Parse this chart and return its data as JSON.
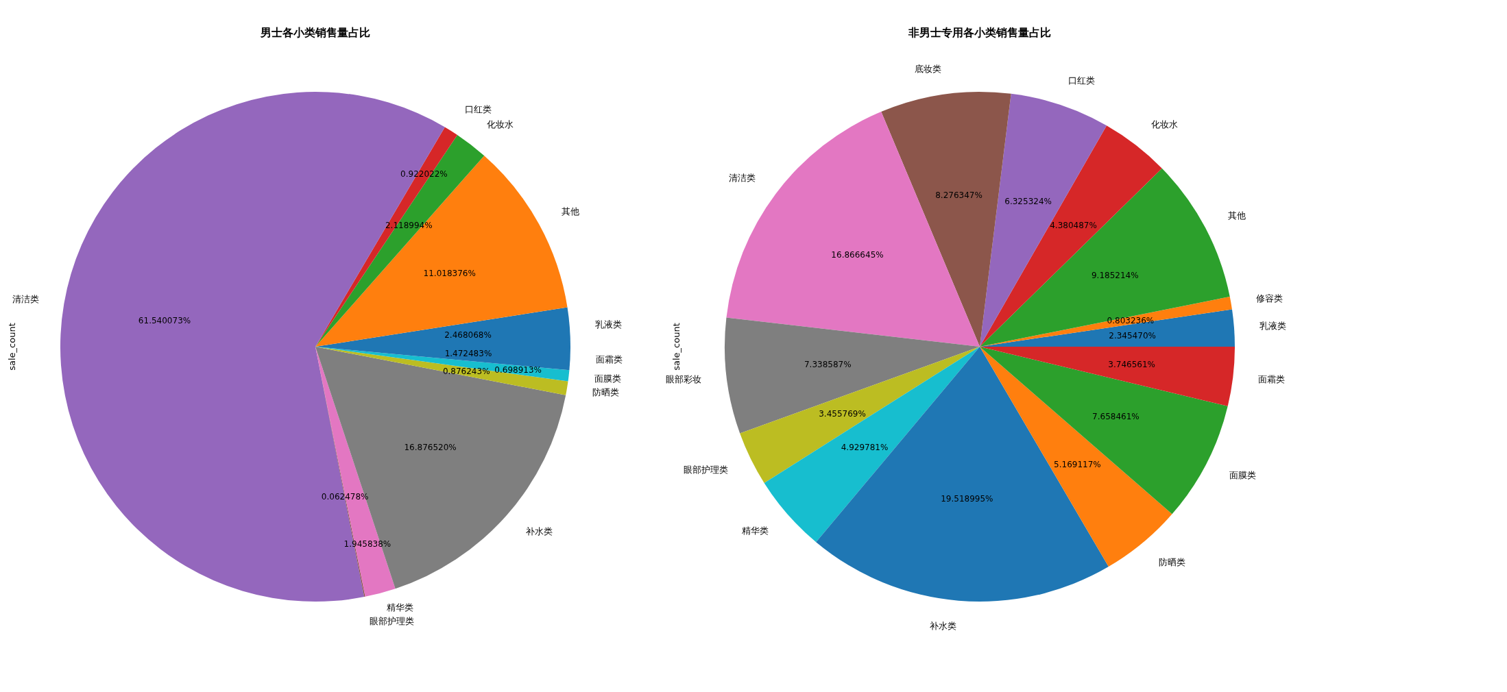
{
  "chart_data": [
    {
      "type": "pie",
      "title": "男士各小类销售量占比",
      "ylabel": "sale_count",
      "categories": [
        "乳液类",
        "其他",
        "化妆水",
        "口红类",
        "清洁类",
        "眼部护理类",
        "精华类",
        "补水类",
        "防晒类",
        "面膜类",
        "面霜类"
      ],
      "values": [
        2.468068,
        11.018376,
        2.118994,
        0.922022,
        61.540073,
        0.062478,
        1.945838,
        16.87652,
        0.876243,
        0.698913,
        1.472483
      ],
      "value_labels": [
        "2.468068%",
        "11.018376%",
        "2.118994%",
        "0.922022%",
        "61.540073%",
        "0.062478%",
        "1.945838%",
        "16.876520%",
        "0.876243%",
        "0.698913%",
        "1.472483%"
      ],
      "colors": [
        "#1f77b4",
        "#ff7f0e",
        "#2ca02c",
        "#d62728",
        "#9467bd",
        "#8c564b",
        "#e377c2",
        "#7f7f7f",
        "#bcbd22",
        "#17becf",
        "#1f77b4"
      ]
    },
    {
      "type": "pie",
      "title": "非男士专用各小类销售量占比",
      "ylabel": "sale_count",
      "categories": [
        "乳液类",
        "修容类",
        "其他",
        "化妆水",
        "口红类",
        "底妆类",
        "清洁类",
        "眼部彩妆",
        "眼部护理类",
        "精华类",
        "补水类",
        "防晒类",
        "面膜类",
        "面霜类"
      ],
      "values": [
        2.34547,
        0.803236,
        9.185214,
        4.380487,
        6.325324,
        8.276347,
        16.866645,
        7.338587,
        3.455769,
        4.929781,
        19.518995,
        5.169117,
        7.658461,
        3.746561
      ],
      "value_labels": [
        "2.345470%",
        "0.803236%",
        "9.185214%",
        "4.380487%",
        "6.325324%",
        "8.276347%",
        "16.866645%",
        "7.338587%",
        "3.455769%",
        "4.929781%",
        "19.518995%",
        "5.169117%",
        "7.658461%",
        "3.746561%"
      ],
      "colors": [
        "#1f77b4",
        "#ff7f0e",
        "#2ca02c",
        "#d62728",
        "#9467bd",
        "#8c564b",
        "#e377c2",
        "#7f7f7f",
        "#bcbd22",
        "#17becf",
        "#1f77b4",
        "#ff7f0e",
        "#2ca02c",
        "#d62728"
      ]
    }
  ]
}
